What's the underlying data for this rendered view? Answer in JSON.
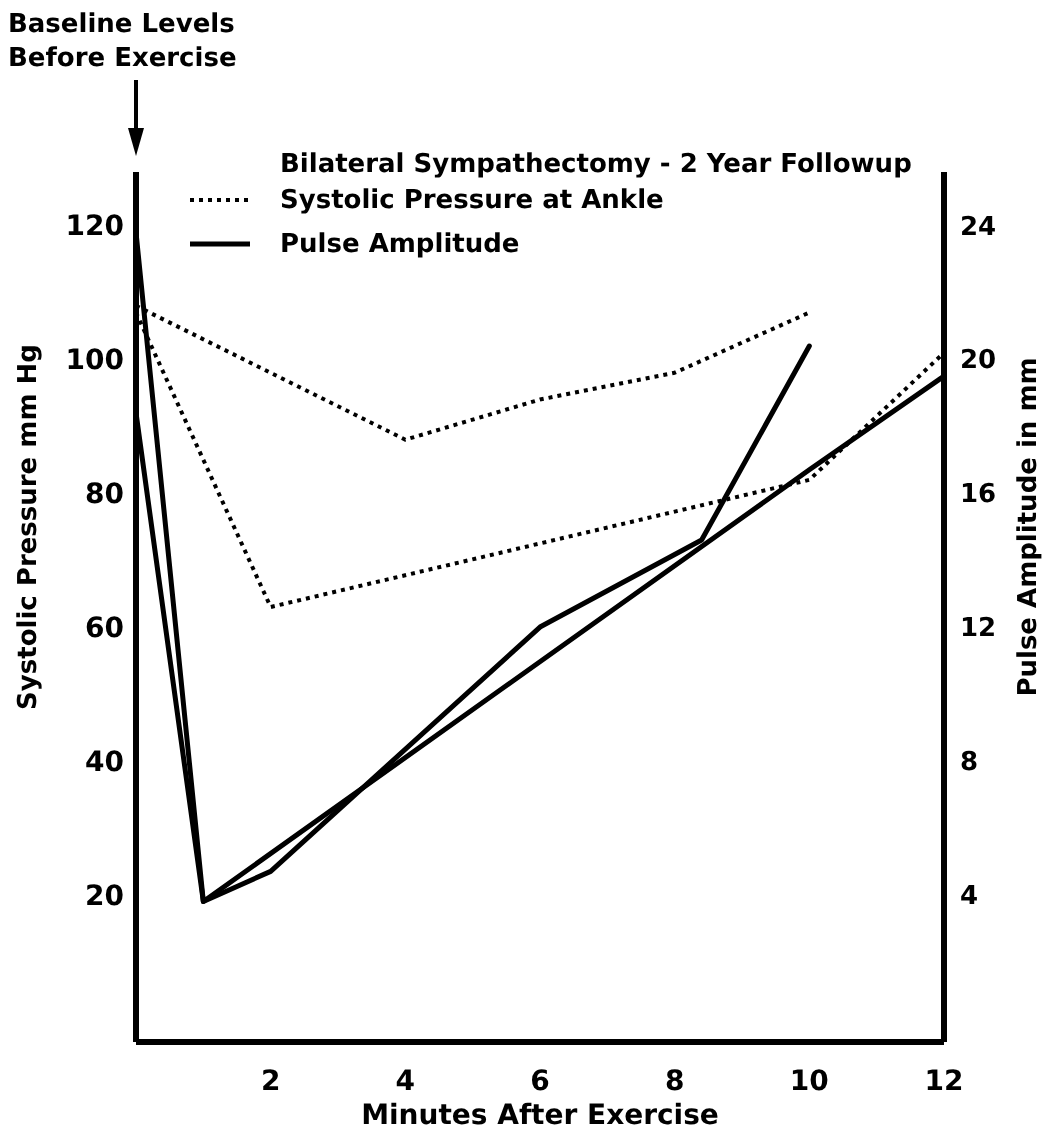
{
  "chart_data": {
    "type": "line",
    "title": "Bilateral Sympathectomy - 2 Year Followup",
    "xlabel": "Minutes After Exercise",
    "ylabel": "Systolic Pressure mm Hg",
    "y2label": "Pulse Amplitude in mm",
    "xlim": [
      0,
      12
    ],
    "xticks": [
      2,
      4,
      6,
      8,
      10,
      12
    ],
    "ylim": [
      -2,
      128
    ],
    "yticks": [
      20,
      40,
      60,
      80,
      100,
      120
    ],
    "y2lim": [
      -0.4,
      25.6
    ],
    "y2ticks": [
      4,
      8,
      12,
      16,
      20,
      24
    ],
    "grid": false,
    "legend": "top left",
    "marker": "none",
    "annotations": [
      "Baseline Levels Before Exercise"
    ],
    "series": [
      {
        "name": "Systolic Pressure at Ankle",
        "color": "#000000",
        "line_style": "dotted",
        "x": [
          0,
          4,
          6,
          8,
          10
        ],
        "values": [
          108,
          88,
          94,
          98,
          107
        ]
      },
      {
        "color": "#000000",
        "line_style": "dotted",
        "x": [
          0,
          2,
          10,
          12
        ],
        "values": [
          107,
          63,
          82,
          101
        ]
      },
      {
        "name": "Pulse Amplitude",
        "color": "#000000",
        "line_style": "solid",
        "axis": "y2",
        "x": [
          0,
          1,
          2,
          6,
          8.4,
          10
        ],
        "values": [
          23.8,
          3.8,
          4.7,
          12,
          14.6,
          20.4
        ]
      },
      {
        "color": "#000000",
        "line_style": "solid",
        "axis": "y2",
        "x": [
          0,
          1,
          10,
          12
        ],
        "values": [
          18.4,
          3.8,
          16.7,
          19.5
        ]
      }
    ]
  }
}
